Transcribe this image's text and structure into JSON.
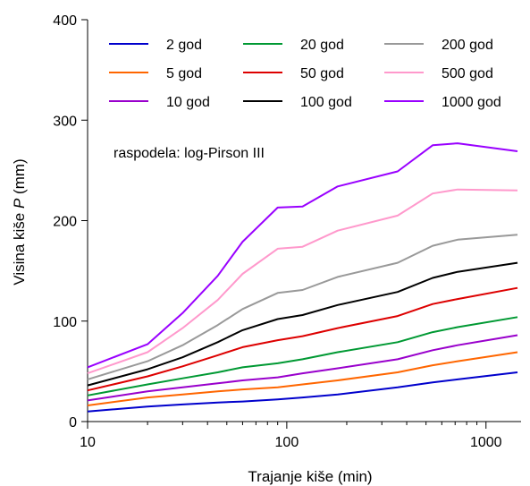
{
  "chart_data": {
    "type": "line",
    "xlabel": "Trajanje kiše (min)",
    "ylabel_prefix": "Visina kiše",
    "ylabel_var": "P",
    "ylabel_unit": "(mm)",
    "xscale": "log",
    "xlim": [
      10,
      1500
    ],
    "ylim": [
      0,
      400
    ],
    "xticks": [
      10,
      100,
      1000
    ],
    "xtick_labels": [
      "10",
      "100",
      "1000"
    ],
    "yticks": [
      0,
      100,
      200,
      300,
      400
    ],
    "ytick_labels": [
      "0",
      "100",
      "200",
      "300",
      "400"
    ],
    "grid": false,
    "legend_placement": "top",
    "annotation": "raspodela: log-Pirson III",
    "x": [
      10,
      20,
      30,
      45,
      60,
      90,
      120,
      180,
      360,
      540,
      720,
      1440
    ],
    "series": [
      {
        "name": "2 god",
        "color": "#0000cc",
        "values": [
          10,
          15,
          17,
          19,
          20,
          22,
          24,
          27,
          34,
          39,
          42,
          49
        ]
      },
      {
        "name": "5 god",
        "color": "#ff6600",
        "values": [
          16,
          24,
          27,
          30,
          32,
          34,
          37,
          41,
          49,
          56,
          60,
          69
        ]
      },
      {
        "name": "10 god",
        "color": "#9900cc",
        "values": [
          21,
          30,
          34,
          38,
          41,
          44,
          48,
          53,
          62,
          71,
          76,
          86
        ]
      },
      {
        "name": "20 god",
        "color": "#009933",
        "values": [
          26,
          37,
          43,
          49,
          54,
          58,
          62,
          69,
          79,
          89,
          94,
          104
        ]
      },
      {
        "name": "50 god",
        "color": "#dd0000",
        "values": [
          31,
          45,
          55,
          66,
          74,
          81,
          85,
          93,
          105,
          117,
          122,
          133
        ]
      },
      {
        "name": "100 god",
        "color": "#000000",
        "values": [
          36,
          52,
          64,
          79,
          91,
          102,
          106,
          116,
          129,
          143,
          149,
          158
        ]
      },
      {
        "name": "200 god",
        "color": "#999999",
        "values": [
          42,
          60,
          76,
          96,
          112,
          128,
          131,
          144,
          158,
          175,
          181,
          186
        ]
      },
      {
        "name": "500 god",
        "color": "#ff99cc",
        "values": [
          48,
          69,
          93,
          121,
          147,
          172,
          174,
          190,
          205,
          227,
          231,
          230
        ]
      },
      {
        "name": "1000 god",
        "color": "#9900ff",
        "values": [
          54,
          77,
          108,
          145,
          179,
          213,
          214,
          234,
          249,
          275,
          277,
          269
        ]
      }
    ]
  }
}
